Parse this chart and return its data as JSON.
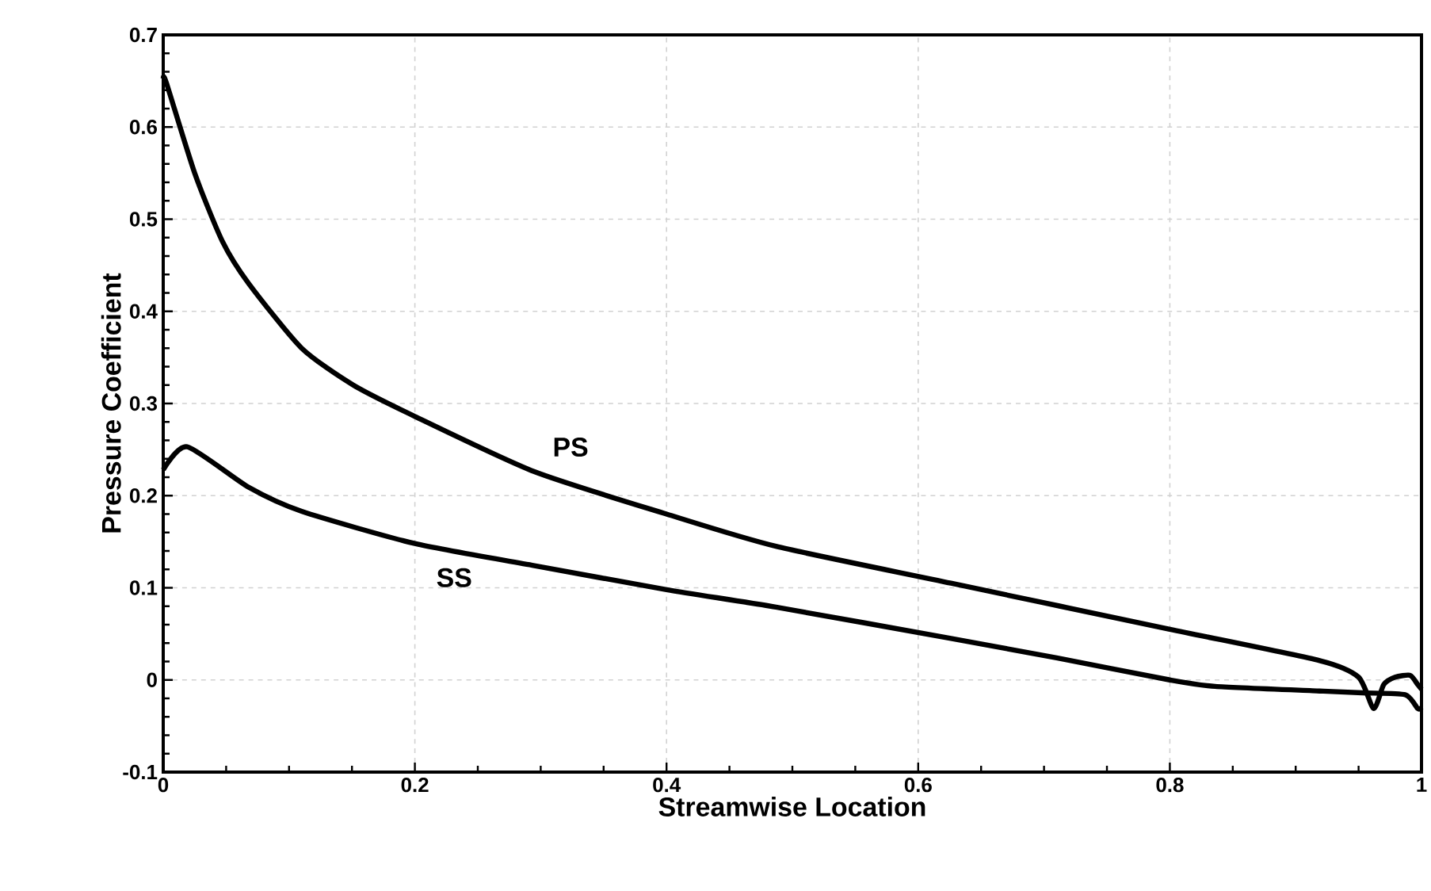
{
  "chart_data": {
    "type": "line",
    "xlabel": "Streamwise Location",
    "ylabel": "Pressure Coefficient",
    "xlim": [
      0,
      1
    ],
    "ylim": [
      -0.1,
      0.7
    ],
    "xticks": [
      0,
      0.2,
      0.4,
      0.6,
      0.8,
      1
    ],
    "yticks": [
      -0.1,
      0,
      0.1,
      0.2,
      0.3,
      0.4,
      0.5,
      0.6,
      0.7
    ],
    "grid": true,
    "marker": "none",
    "line_style": "solid",
    "series": [
      {
        "name": "PS",
        "color": "#000000",
        "x": [
          0,
          0.0025,
          0.025,
          0.047,
          0.068,
          0.11,
          0.151,
          0.2,
          0.295,
          0.4,
          0.487,
          0.626,
          0.8,
          0.919,
          0.95,
          0.962,
          0.97,
          0.979,
          0.991,
          0.997,
          1
        ],
        "values": [
          0.653,
          0.648,
          0.55,
          0.476,
          0.43,
          0.36,
          0.32,
          0.286,
          0.226,
          0.18,
          0.145,
          0.105,
          0.055,
          0.021,
          0.003,
          -0.031,
          -0.005,
          0.003,
          0.005,
          -0.005,
          -0.01
        ]
      },
      {
        "name": "SS",
        "color": "#000000",
        "x": [
          0,
          0.019,
          0.068,
          0.11,
          0.2,
          0.295,
          0.4,
          0.487,
          0.626,
          0.71,
          0.8,
          0.836,
          0.919,
          0.953,
          0.987,
          0.997,
          1
        ],
        "values": [
          0.228,
          0.253,
          0.209,
          0.183,
          0.148,
          0.124,
          0.098,
          0.079,
          0.045,
          0.024,
          0.0,
          -0.007,
          -0.012,
          -0.014,
          -0.016,
          -0.031,
          -0.03
        ]
      }
    ]
  }
}
